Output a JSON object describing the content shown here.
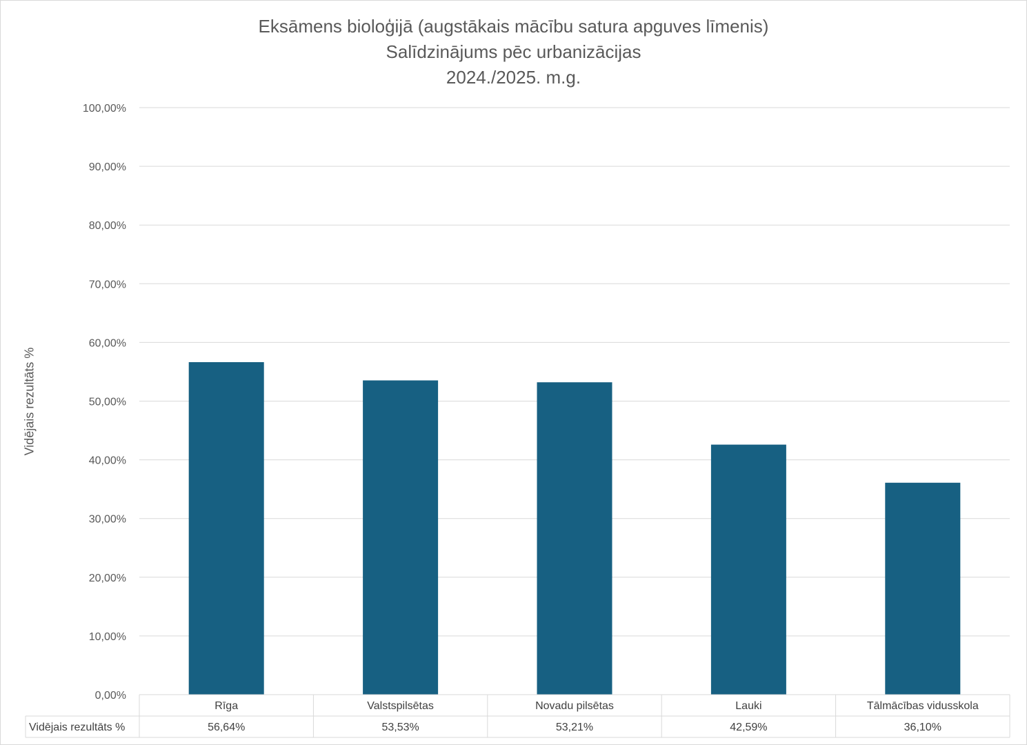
{
  "chart_data": {
    "type": "bar",
    "title": [
      "Eksāmens bioloģijā (augstākais mācību satura apguves līmenis)",
      "Salīdzinājums pēc urbanizācijas",
      "2024./2025. m.g."
    ],
    "ylabel": "Vidējais rezultāts %",
    "ylim": [
      0,
      100
    ],
    "yticks": [
      "0,00%",
      "10,00%",
      "20,00%",
      "30,00%",
      "40,00%",
      "50,00%",
      "60,00%",
      "70,00%",
      "80,00%",
      "90,00%",
      "100,00%"
    ],
    "categories": [
      "Rīga",
      "Valstspilsētas",
      "Novadu pilsētas",
      "Lauki",
      "Tālmācības vidusskola"
    ],
    "series": [
      {
        "name": "Vidējais rezultāts %",
        "values": [
          56.64,
          53.53,
          53.21,
          42.59,
          36.1
        ],
        "labels": [
          "56,64%",
          "53,53%",
          "53,21%",
          "42,59%",
          "36,10%"
        ],
        "color": "#176082"
      }
    ],
    "grid": true,
    "data_table": true
  }
}
